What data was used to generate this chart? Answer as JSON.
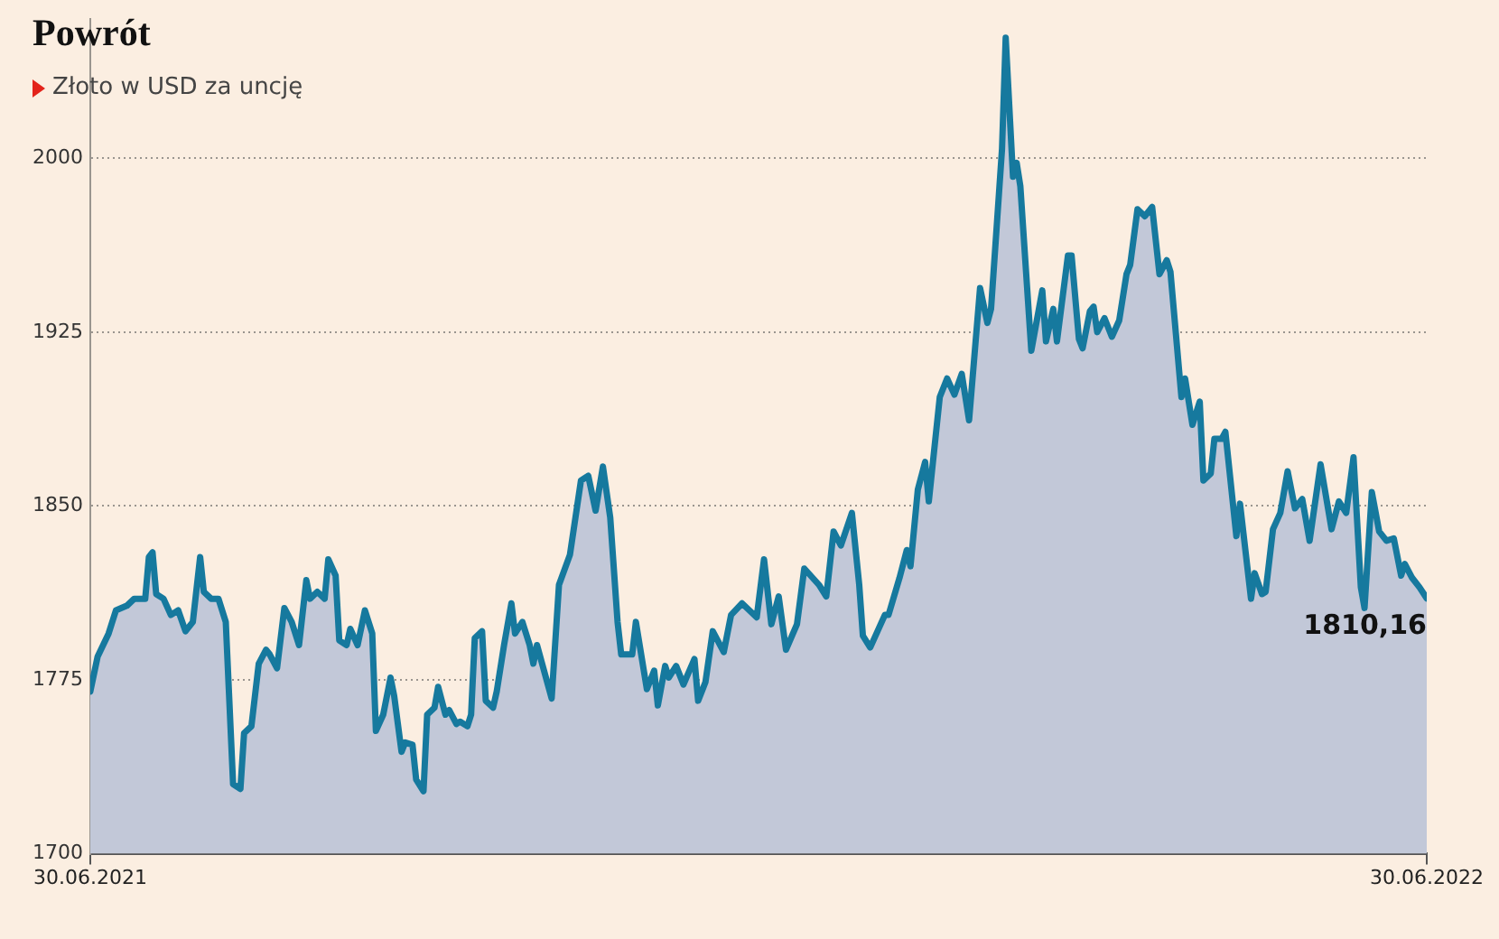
{
  "chart_data": {
    "type": "area",
    "title": "Powrót",
    "subtitle": "Złoto w USD za uncję",
    "x": [
      "2021-06-30",
      "2021-07-02",
      "2021-07-05",
      "2021-07-07",
      "2021-07-10",
      "2021-07-12",
      "2021-07-15",
      "2021-07-16",
      "2021-07-17",
      "2021-07-18",
      "2021-07-20",
      "2021-07-22",
      "2021-07-24",
      "2021-07-26",
      "2021-07-28",
      "2021-07-30",
      "2021-07-31",
      "2021-08-02",
      "2021-08-04",
      "2021-08-06",
      "2021-08-08",
      "2021-08-10",
      "2021-08-11",
      "2021-08-13",
      "2021-08-15",
      "2021-08-17",
      "2021-08-18",
      "2021-08-20",
      "2021-08-22",
      "2021-08-24",
      "2021-08-26",
      "2021-08-28",
      "2021-08-29",
      "2021-08-31",
      "2021-09-02",
      "2021-09-03",
      "2021-09-05",
      "2021-09-06",
      "2021-09-08",
      "2021-09-09",
      "2021-09-11",
      "2021-09-13",
      "2021-09-15",
      "2021-09-16",
      "2021-09-18",
      "2021-09-20",
      "2021-09-21",
      "2021-09-23",
      "2021-09-24",
      "2021-09-26",
      "2021-09-27",
      "2021-09-29",
      "2021-09-30",
      "2021-10-02",
      "2021-10-03",
      "2021-10-05",
      "2021-10-06",
      "2021-10-08",
      "2021-10-09",
      "2021-10-11",
      "2021-10-12",
      "2021-10-13",
      "2021-10-15",
      "2021-10-16",
      "2021-10-18",
      "2021-10-19",
      "2021-10-21",
      "2021-10-23",
      "2021-10-24",
      "2021-10-26",
      "2021-10-28",
      "2021-10-29",
      "2021-10-30",
      "2021-11-03",
      "2021-11-05",
      "2021-11-08",
      "2021-11-11",
      "2021-11-13",
      "2021-11-15",
      "2021-11-17",
      "2021-11-19",
      "2021-11-21",
      "2021-11-22",
      "2021-11-25",
      "2021-11-26",
      "2021-11-29",
      "2021-12-01",
      "2021-12-02",
      "2021-12-04",
      "2021-12-05",
      "2021-12-07",
      "2021-12-09",
      "2021-12-12",
      "2021-12-13",
      "2021-12-15",
      "2021-12-17",
      "2021-12-20",
      "2021-12-22",
      "2021-12-25",
      "2021-12-29",
      "2021-12-31",
      "2022-01-02",
      "2022-01-04",
      "2022-01-06",
      "2022-01-09",
      "2022-01-11",
      "2022-01-15",
      "2022-01-17",
      "2022-01-19",
      "2022-01-21",
      "2022-01-24",
      "2022-01-26",
      "2022-01-27",
      "2022-01-29",
      "2022-02-02",
      "2022-02-03",
      "2022-02-06",
      "2022-02-08",
      "2022-02-09",
      "2022-02-11",
      "2022-02-13",
      "2022-02-14",
      "2022-02-17",
      "2022-02-19",
      "2022-02-21",
      "2022-02-23",
      "2022-02-25",
      "2022-02-28",
      "2022-03-02",
      "2022-03-03",
      "2022-03-06",
      "2022-03-07",
      "2022-03-09",
      "2022-03-10",
      "2022-03-11",
      "2022-03-14",
      "2022-03-17",
      "2022-03-18",
      "2022-03-20",
      "2022-03-21",
      "2022-03-24",
      "2022-03-25",
      "2022-03-27",
      "2022-03-28",
      "2022-03-30",
      "2022-03-31",
      "2022-04-01",
      "2022-04-03",
      "2022-04-05",
      "2022-04-07",
      "2022-04-09",
      "2022-04-10",
      "2022-04-12",
      "2022-04-14",
      "2022-04-16",
      "2022-04-18",
      "2022-04-20",
      "2022-04-21",
      "2022-04-24",
      "2022-04-25",
      "2022-04-27",
      "2022-04-29",
      "2022-04-30",
      "2022-05-02",
      "2022-05-03",
      "2022-05-05",
      "2022-05-06",
      "2022-05-09",
      "2022-05-10",
      "2022-05-13",
      "2022-05-14",
      "2022-05-16",
      "2022-05-17",
      "2022-05-19",
      "2022-05-21",
      "2022-05-23",
      "2022-05-25",
      "2022-05-27",
      "2022-05-29",
      "2022-06-01",
      "2022-06-04",
      "2022-06-06",
      "2022-06-08",
      "2022-06-10",
      "2022-06-12",
      "2022-06-13",
      "2022-06-15",
      "2022-06-17",
      "2022-06-19",
      "2022-06-21",
      "2022-06-23",
      "2022-06-24",
      "2022-06-26",
      "2022-06-28",
      "2022-06-30"
    ],
    "series": [
      {
        "color": "#16799e",
        "values": [
          1770,
          1785,
          1795,
          1805,
          1807,
          1810,
          1810,
          1828,
          1830,
          1812,
          1810,
          1803,
          1805,
          1796,
          1800,
          1828,
          1813,
          1810,
          1810,
          1800,
          1730,
          1728,
          1752,
          1755,
          1782,
          1788,
          1786,
          1780,
          1806,
          1800,
          1790,
          1818,
          1810,
          1813,
          1810,
          1827,
          1820,
          1792,
          1790,
          1797,
          1790,
          1805,
          1795,
          1753,
          1760,
          1776,
          1768,
          1744,
          1748,
          1747,
          1732,
          1727,
          1760,
          1763,
          1772,
          1760,
          1762,
          1756,
          1757,
          1755,
          1760,
          1793,
          1796,
          1766,
          1763,
          1770,
          1790,
          1808,
          1795,
          1800,
          1790,
          1782,
          1790,
          1767,
          1816,
          1829,
          1861,
          1863,
          1848,
          1867,
          1845,
          1800,
          1786,
          1786,
          1800,
          1771,
          1779,
          1764,
          1781,
          1776,
          1781,
          1773,
          1784,
          1766,
          1774,
          1796,
          1787,
          1803,
          1808,
          1802,
          1827,
          1799,
          1811,
          1788,
          1799,
          1823,
          1816,
          1811,
          1839,
          1833,
          1847,
          1816,
          1794,
          1789,
          1803,
          1803,
          1819,
          1831,
          1824,
          1857,
          1869,
          1852,
          1897,
          1905,
          1898,
          1907,
          1887,
          1944,
          1929,
          1935,
          2004,
          2052,
          1992,
          1998,
          1988,
          1917,
          1943,
          1921,
          1935,
          1921,
          1958,
          1958,
          1922,
          1918,
          1934,
          1936,
          1925,
          1931,
          1923,
          1930,
          1950,
          1954,
          1978,
          1975,
          1979,
          1950,
          1956,
          1951,
          1897,
          1905,
          1885,
          1895,
          1861,
          1864,
          1879,
          1879,
          1882,
          1837,
          1851,
          1810,
          1821,
          1812,
          1813,
          1840,
          1847,
          1865,
          1849,
          1853,
          1835,
          1868,
          1840,
          1852,
          1847,
          1871,
          1815,
          1806,
          1856,
          1839,
          1835,
          1836,
          1820,
          1825,
          1819,
          1815,
          1810.16
        ],
        "value_labels": [
          null,
          null,
          null,
          null,
          null,
          null,
          null,
          null,
          null,
          null,
          null,
          null,
          null,
          null,
          null,
          null,
          null,
          null,
          null,
          null,
          null,
          null,
          null,
          null,
          null,
          null,
          null,
          null,
          null,
          null,
          null,
          null,
          null,
          null,
          null,
          null,
          null,
          null,
          null,
          null,
          null,
          null,
          null,
          null,
          null,
          null,
          null,
          null,
          null,
          null,
          null,
          null,
          null,
          null,
          null,
          null,
          null,
          null,
          null,
          null,
          null,
          null,
          null,
          null,
          null,
          null,
          null,
          null,
          null,
          null,
          null,
          null,
          null,
          null,
          null,
          null,
          null,
          null,
          null,
          null,
          null,
          null,
          null,
          null,
          null,
          null,
          null,
          null,
          null,
          null,
          null,
          null,
          null,
          null,
          null,
          null,
          null,
          null,
          null,
          null,
          null,
          null,
          null,
          null,
          null,
          null,
          null,
          null,
          null,
          null,
          null,
          null,
          null,
          null,
          null,
          null,
          null,
          null,
          null,
          null,
          null,
          null,
          null,
          null,
          null,
          null,
          null,
          null,
          null,
          null,
          null,
          null,
          null,
          null,
          null,
          null,
          null,
          null,
          null,
          null,
          null,
          null,
          null,
          null,
          null,
          null,
          null,
          null,
          null,
          null,
          null,
          null,
          null,
          null,
          null,
          null,
          null,
          null,
          null,
          null,
          null,
          null,
          null,
          null,
          null,
          null,
          null,
          null,
          null,
          null,
          null,
          null,
          null,
          null,
          null,
          null,
          null,
          null,
          null,
          null,
          null,
          null,
          null,
          null,
          null,
          null,
          null,
          null,
          null,
          null,
          null,
          null,
          null,
          null,
          "1810,16"
        ]
      }
    ],
    "xlim": [
      "2021-06-30",
      "2022-06-30"
    ],
    "xticks": [
      {
        "value": "2021-06-30",
        "label": "30.06.2021"
      },
      {
        "value": "2022-06-30",
        "label": "30.06.2022"
      }
    ],
    "ylim": [
      1700,
      2060
    ],
    "yticks": [
      1700,
      1775,
      1850,
      1925,
      2000
    ],
    "grid": "y",
    "legend": false,
    "marker": "none",
    "line_style": "solid"
  }
}
